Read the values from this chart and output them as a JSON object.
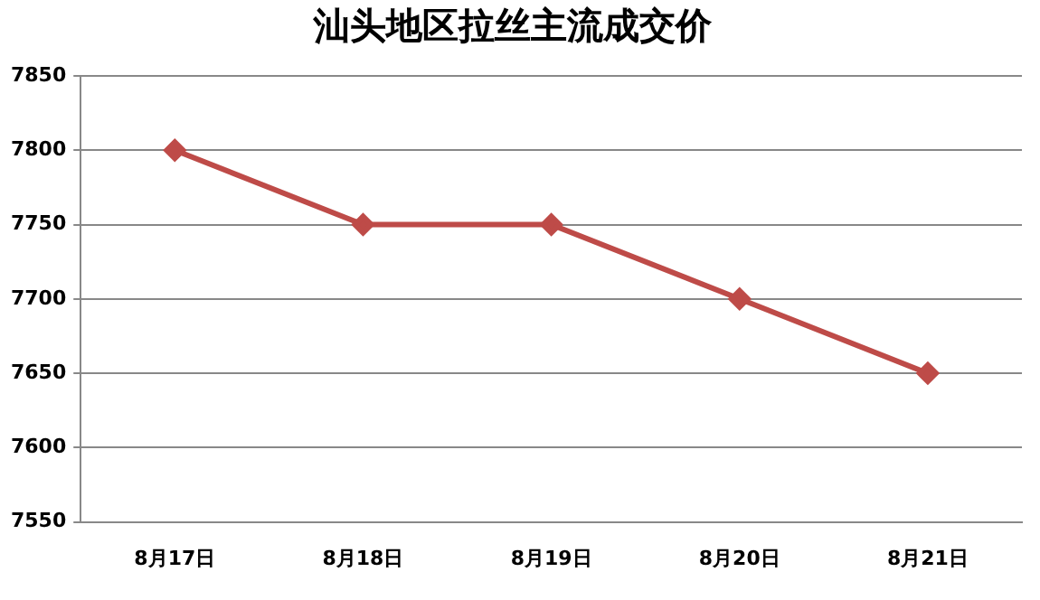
{
  "chart_data": {
    "type": "line",
    "title": "汕头地区拉丝主流成交价",
    "categories": [
      "8月17日",
      "8月18日",
      "8月19日",
      "8月20日",
      "8月21日"
    ],
    "series": [
      {
        "color": "#be4b48",
        "values": [
          7800,
          7750,
          7750,
          7700,
          7650
        ]
      }
    ],
    "ylim": [
      7550,
      7850
    ],
    "yticks": [
      7550,
      7600,
      7650,
      7700,
      7750,
      7800,
      7850
    ],
    "grid": "y",
    "legend": false,
    "marker": "diamond",
    "line_style": "solid"
  }
}
